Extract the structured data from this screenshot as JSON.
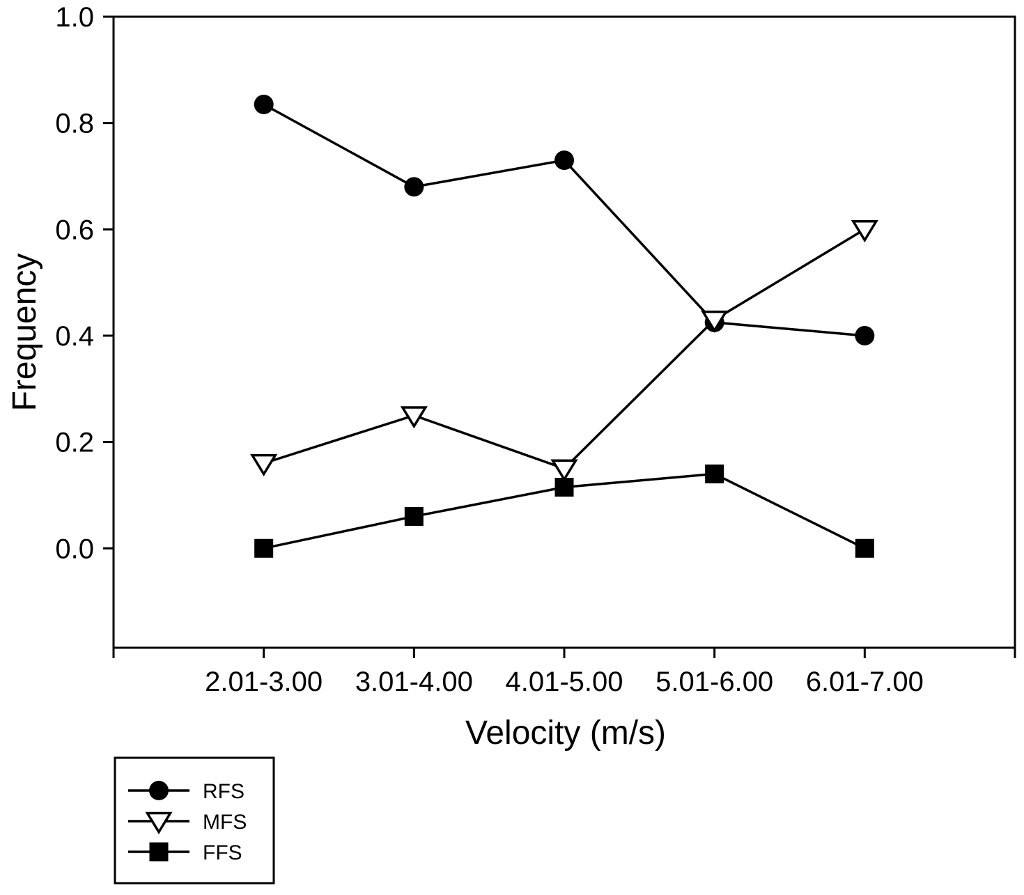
{
  "figure": {
    "background": "#ffffff",
    "ink_color": "#000000"
  },
  "chart_data": {
    "type": "line",
    "title": "",
    "xlabel": "Velocity (m/s)",
    "ylabel": "Frequency",
    "categories": [
      "2.01-3.00",
      "3.01-4.00",
      "4.01-5.00",
      "5.01-6.00",
      "6.01-7.00"
    ],
    "series": [
      {
        "name": "RFS",
        "marker": "filled-circle",
        "values": [
          0.835,
          0.68,
          0.73,
          0.425,
          0.4
        ]
      },
      {
        "name": "MFS",
        "marker": "open-triangle-down",
        "values": [
          0.16,
          0.25,
          0.15,
          0.43,
          0.6
        ]
      },
      {
        "name": "FFS",
        "marker": "filled-square",
        "values": [
          0.0,
          0.06,
          0.115,
          0.14,
          0.0
        ]
      }
    ],
    "yticks": [
      0.0,
      0.2,
      0.4,
      0.6,
      0.8,
      1.0
    ],
    "ytick_labels": [
      "0.0",
      "0.2",
      "0.4",
      "0.6",
      "0.8",
      "1.0"
    ],
    "ylim": [
      -0.187,
      1.0
    ],
    "grid": false,
    "legend": {
      "position": "bottom-left-outside",
      "entries": [
        "RFS",
        "MFS",
        "FFS"
      ]
    }
  }
}
